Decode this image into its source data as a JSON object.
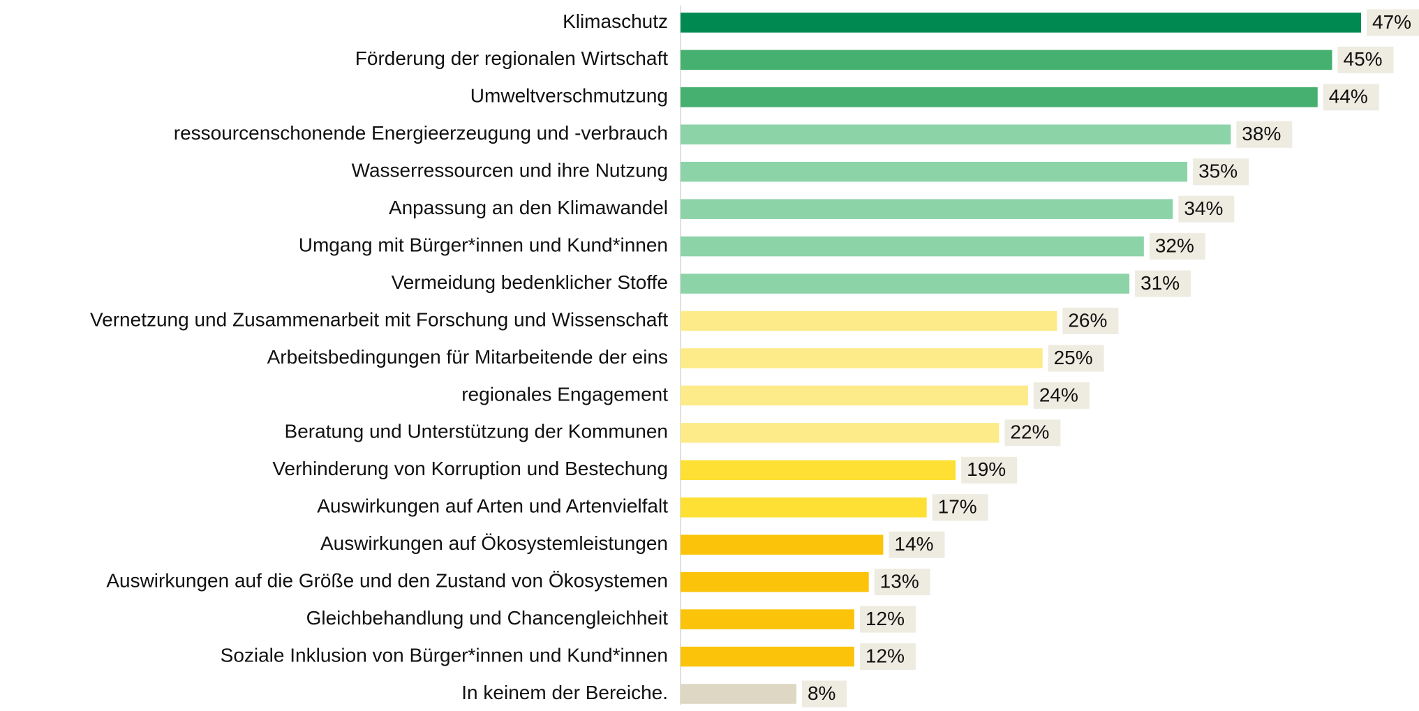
{
  "chart_data": {
    "type": "hbar",
    "categories": [
      "Klimaschutz",
      "Förderung der regionalen Wirtschaft",
      "Umweltverschmutzung",
      "ressourcenschonende Energieerzeugung und -verbrauch",
      "Wasserressourcen und ihre Nutzung",
      "Anpassung an den Klimawandel",
      "Umgang mit Bürger*innen und Kund*innen",
      "Vermeidung bedenklicher Stoffe",
      "Vernetzung und Zusammenarbeit mit Forschung und Wissenschaft",
      "Arbeitsbedingungen für Mitarbeitende der eins",
      "regionales Engagement",
      "Beratung und Unterstützung der Kommunen",
      "Verhinderung von Korruption und Bestechung",
      "Auswirkungen auf Arten und Artenvielfalt",
      "Auswirkungen auf Ökosystemleistungen",
      "Auswirkungen auf die Größe und den Zustand von Ökosystemen",
      "Gleichbehandlung und Chancengleichheit",
      "Soziale Inklusion von Bürger*innen und Kund*innen",
      "In keinem der Bereiche."
    ],
    "values": [
      47,
      45,
      44,
      38,
      35,
      34,
      32,
      31,
      26,
      25,
      24,
      22,
      19,
      17,
      14,
      13,
      12,
      12,
      8
    ],
    "value_labels": [
      "47%",
      "45%",
      "44%",
      "38%",
      "35%",
      "34%",
      "32%",
      "31%",
      "26%",
      "25%",
      "24%",
      "22%",
      "19%",
      "17%",
      "14%",
      "13%",
      "12%",
      "12%",
      "8%"
    ],
    "colors": [
      "#008a52",
      "#45b06f",
      "#45b06f",
      "#8dd3a8",
      "#8dd3a8",
      "#8dd3a8",
      "#8dd3a8",
      "#8dd3a8",
      "#fdeb8a",
      "#fdeb8a",
      "#fdeb8a",
      "#fdeb8a",
      "#fde033",
      "#fde033",
      "#fbc30a",
      "#fbc30a",
      "#fbc30a",
      "#fbc30a",
      "#ddd7c3"
    ]
  }
}
